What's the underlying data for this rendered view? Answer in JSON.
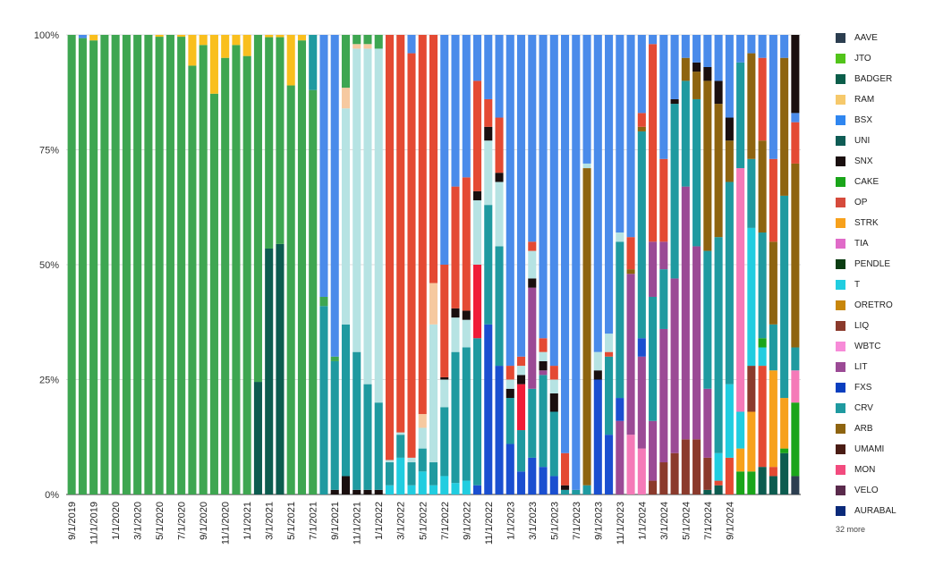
{
  "chart_data": {
    "type": "bar",
    "stacked": true,
    "normalized": true,
    "y_ticks": [
      "0%",
      "25%",
      "50%",
      "75%",
      "100%"
    ],
    "ylim": [
      0,
      100
    ],
    "grid": true,
    "legend_placement": "right",
    "legend_more": "32 more",
    "x_tick_labels": [
      "9/1/2019",
      "11/1/2019",
      "1/1/2020",
      "3/1/2020",
      "5/1/2020",
      "7/1/2020",
      "9/1/2020",
      "11/1/2020",
      "1/1/2021",
      "3/1/2021",
      "5/1/2021",
      "7/1/2021",
      "9/1/2021",
      "11/1/2021",
      "1/1/2022",
      "3/1/2022",
      "5/1/2022",
      "7/1/2022",
      "9/1/2022",
      "11/1/2022",
      "1/1/2023",
      "3/1/2023",
      "5/1/2023",
      "7/1/2023",
      "9/1/2023",
      "11/1/2023",
      "1/1/2024",
      "3/1/2024",
      "5/1/2024",
      "7/1/2024",
      "9/1/2024"
    ],
    "legend": [
      {
        "name": "AAVE",
        "color": "#2c3e50"
      },
      {
        "name": "JTO",
        "color": "#52c41a"
      },
      {
        "name": "BADGER",
        "color": "#0b5e4a"
      },
      {
        "name": "RAM",
        "color": "#f6c96b"
      },
      {
        "name": "BSX",
        "color": "#2f86f0"
      },
      {
        "name": "UNI",
        "color": "#0f5c55"
      },
      {
        "name": "SNX",
        "color": "#1a0f0f"
      },
      {
        "name": "CAKE",
        "color": "#1aa51a"
      },
      {
        "name": "OP",
        "color": "#d64b3c"
      },
      {
        "name": "STRK",
        "color": "#f7a11c"
      },
      {
        "name": "TIA",
        "color": "#e06bc8"
      },
      {
        "name": "PENDLE",
        "color": "#0b3d12"
      },
      {
        "name": "T",
        "color": "#21cde0"
      },
      {
        "name": "ORETRO",
        "color": "#c8860a"
      },
      {
        "name": "LIQ",
        "color": "#8b3a2c"
      },
      {
        "name": "WBTC",
        "color": "#f78bd8"
      },
      {
        "name": "LIT",
        "color": "#9b4a95"
      },
      {
        "name": "FXS",
        "color": "#0a3fbf"
      },
      {
        "name": "CRV",
        "color": "#1f9aa0"
      },
      {
        "name": "ARB",
        "color": "#8e6410"
      },
      {
        "name": "UMAMI",
        "color": "#4a1c14"
      },
      {
        "name": "MON",
        "color": "#f24b7e"
      },
      {
        "name": "VELO",
        "color": "#5a2a4c"
      },
      {
        "name": "AURABAL",
        "color": "#0a2a7a"
      }
    ],
    "segment_colors": {
      "g": "#3ea651",
      "y": "#f9bf1e",
      "dt": "#0c5c4f",
      "cr": "#1f9aa0",
      "lb": "#b6e3e3",
      "rd": "#e44a33",
      "bb": "#4a8bea",
      "db": "#1a4fd0",
      "pk": "#f57ab8",
      "pu": "#9b4a95",
      "br": "#8b3a2c",
      "ab": "#8e6410",
      "or": "#f7a11c",
      "cy": "#21cde0",
      "bk": "#1a0f0f",
      "gn": "#1aa51a",
      "ft": "#f6c9a0",
      "mr": "#f01d38",
      "ak": "#2c3e50"
    },
    "bars": [
      [
        [
          "g",
          100
        ]
      ],
      [
        [
          "g",
          99.3
        ],
        [
          "bb",
          0.7
        ]
      ],
      [
        [
          "g",
          98.8
        ],
        [
          "y",
          1.2
        ]
      ],
      [
        [
          "g",
          100
        ]
      ],
      [
        [
          "g",
          100
        ]
      ],
      [
        [
          "g",
          100
        ]
      ],
      [
        [
          "g",
          100
        ]
      ],
      [
        [
          "g",
          100
        ]
      ],
      [
        [
          "g",
          99.6
        ],
        [
          "y",
          0.4
        ]
      ],
      [
        [
          "g",
          100
        ]
      ],
      [
        [
          "g",
          99.6
        ],
        [
          "y",
          0.4
        ]
      ],
      [
        [
          "g",
          93.3
        ],
        [
          "y",
          6.7
        ]
      ],
      [
        [
          "g",
          97.8
        ],
        [
          "y",
          2.2
        ]
      ],
      [
        [
          "g",
          87.2
        ],
        [
          "y",
          12.8
        ]
      ],
      [
        [
          "g",
          95
        ],
        [
          "y",
          5
        ]
      ],
      [
        [
          "g",
          97.8
        ],
        [
          "y",
          2.2
        ]
      ],
      [
        [
          "g",
          95.4
        ],
        [
          "y",
          4.6
        ]
      ],
      [
        [
          "dt",
          24.5
        ],
        [
          "g",
          75.5
        ]
      ],
      [
        [
          "dt",
          53.5
        ],
        [
          "g",
          46
        ],
        [
          "y",
          0.5
        ]
      ],
      [
        [
          "dt",
          54.5
        ],
        [
          "g",
          45
        ],
        [
          "y",
          0.5
        ]
      ],
      [
        [
          "g",
          89
        ],
        [
          "y",
          11
        ]
      ],
      [
        [
          "g",
          98.8
        ],
        [
          "y",
          1.2
        ]
      ],
      [
        [
          "g",
          88
        ],
        [
          "cr",
          12
        ]
      ],
      [
        [
          "cr",
          41
        ],
        [
          "g",
          2
        ],
        [
          "bb",
          57
        ]
      ],
      [
        [
          "bk",
          1
        ],
        [
          "cr",
          28
        ],
        [
          "g",
          1
        ],
        [
          "bb",
          70
        ]
      ],
      [
        [
          "bk",
          4
        ],
        [
          "cr",
          33
        ],
        [
          "lb",
          47
        ],
        [
          "ft",
          4.5
        ],
        [
          "g",
          11.5
        ]
      ],
      [
        [
          "bk",
          1
        ],
        [
          "cr",
          30
        ],
        [
          "lb",
          66
        ],
        [
          "ft",
          1
        ],
        [
          "g",
          2
        ]
      ],
      [
        [
          "bk",
          1
        ],
        [
          "cr",
          23
        ],
        [
          "lb",
          73
        ],
        [
          "ft",
          1
        ],
        [
          "g",
          2
        ]
      ],
      [
        [
          "bk",
          1
        ],
        [
          "cr",
          19
        ],
        [
          "lb",
          77
        ],
        [
          "g",
          3
        ]
      ],
      [
        [
          "cy",
          2
        ],
        [
          "cr",
          5
        ],
        [
          "lb",
          0.5
        ],
        [
          "rd",
          92.5
        ]
      ],
      [
        [
          "cy",
          8
        ],
        [
          "cr",
          5
        ],
        [
          "lb",
          0.5
        ],
        [
          "rd",
          86.5
        ]
      ],
      [
        [
          "cy",
          2
        ],
        [
          "cr",
          5
        ],
        [
          "lb",
          1
        ],
        [
          "rd",
          88
        ],
        [
          "bb",
          4
        ]
      ],
      [
        [
          "cy",
          5
        ],
        [
          "cr",
          5
        ],
        [
          "lb",
          4.5
        ],
        [
          "ft",
          3
        ],
        [
          "rd",
          82.5
        ]
      ],
      [
        [
          "cy",
          2
        ],
        [
          "cr",
          5
        ],
        [
          "lb",
          30
        ],
        [
          "ft",
          9
        ],
        [
          "rd",
          54
        ]
      ],
      [
        [
          "cy",
          4
        ],
        [
          "cr",
          15
        ],
        [
          "lb",
          6
        ],
        [
          "bk",
          0.5
        ],
        [
          "rd",
          24.5
        ],
        [
          "bb",
          50
        ]
      ],
      [
        [
          "cy",
          2.5
        ],
        [
          "cr",
          28.5
        ],
        [
          "lb",
          7.5
        ],
        [
          "bk",
          2
        ],
        [
          "rd",
          26.5
        ],
        [
          "bb",
          33
        ]
      ],
      [
        [
          "cy",
          3
        ],
        [
          "cr",
          29
        ],
        [
          "lb",
          6
        ],
        [
          "bk",
          2
        ],
        [
          "rd",
          29
        ],
        [
          "bb",
          31
        ]
      ],
      [
        [
          "db",
          2
        ],
        [
          "cr",
          32
        ],
        [
          "mr",
          16
        ],
        [
          "lb",
          14
        ],
        [
          "bk",
          2
        ],
        [
          "rd",
          24
        ],
        [
          "bb",
          10
        ]
      ],
      [
        [
          "db",
          37
        ],
        [
          "cr",
          26
        ],
        [
          "lb",
          14
        ],
        [
          "bk",
          3
        ],
        [
          "rd",
          6
        ],
        [
          "bb",
          14
        ]
      ],
      [
        [
          "db",
          28
        ],
        [
          "cr",
          26
        ],
        [
          "lb",
          14
        ],
        [
          "bk",
          2
        ],
        [
          "rd",
          12
        ],
        [
          "bb",
          18
        ]
      ],
      [
        [
          "db",
          11
        ],
        [
          "cr",
          10
        ],
        [
          "bk",
          2
        ],
        [
          "lb",
          2
        ],
        [
          "rd",
          3
        ],
        [
          "bb",
          72
        ]
      ],
      [
        [
          "db",
          5
        ],
        [
          "cr",
          9
        ],
        [
          "mr",
          10
        ],
        [
          "bk",
          2
        ],
        [
          "lb",
          2
        ],
        [
          "rd",
          2
        ],
        [
          "bb",
          70
        ]
      ],
      [
        [
          "db",
          8
        ],
        [
          "cr",
          15
        ],
        [
          "pu",
          22
        ],
        [
          "bk",
          2
        ],
        [
          "lb",
          6
        ],
        [
          "rd",
          2
        ],
        [
          "bb",
          45
        ]
      ],
      [
        [
          "db",
          6
        ],
        [
          "cr",
          20
        ],
        [
          "pu",
          1
        ],
        [
          "bk",
          2
        ],
        [
          "lb",
          2
        ],
        [
          "rd",
          3
        ],
        [
          "bb",
          66
        ]
      ],
      [
        [
          "db",
          4
        ],
        [
          "cr",
          14
        ],
        [
          "bk",
          4
        ],
        [
          "lb",
          3
        ],
        [
          "rd",
          3
        ],
        [
          "bb",
          72
        ]
      ],
      [
        [
          "cr",
          1
        ],
        [
          "bk",
          1
        ],
        [
          "rd",
          7
        ],
        [
          "bb",
          91
        ]
      ],
      [
        [
          "cr",
          1
        ],
        [
          "bb",
          99
        ]
      ],
      [
        [
          "cr",
          2
        ],
        [
          "ab",
          69
        ],
        [
          "lb",
          1
        ],
        [
          "bb",
          28
        ]
      ],
      [
        [
          "db",
          25
        ],
        [
          "bk",
          2
        ],
        [
          "lb",
          4
        ],
        [
          "bb",
          69
        ]
      ],
      [
        [
          "db",
          13
        ],
        [
          "cr",
          17
        ],
        [
          "rd",
          1
        ],
        [
          "lb",
          4
        ],
        [
          "bb",
          65
        ]
      ],
      [
        [
          "pu",
          16
        ],
        [
          "db",
          5
        ],
        [
          "cr",
          34
        ],
        [
          "lb",
          2
        ],
        [
          "bb",
          43
        ]
      ],
      [
        [
          "pk",
          13
        ],
        [
          "pu",
          35
        ],
        [
          "ab",
          1
        ],
        [
          "rd",
          7
        ],
        [
          "bb",
          44
        ]
      ],
      [
        [
          "pk",
          10
        ],
        [
          "pu",
          20
        ],
        [
          "db",
          4
        ],
        [
          "cr",
          45
        ],
        [
          "ab",
          1
        ],
        [
          "rd",
          3
        ],
        [
          "bb",
          17
        ]
      ],
      [
        [
          "br",
          3
        ],
        [
          "pu",
          13
        ],
        [
          "cr",
          27
        ],
        [
          "pu",
          12
        ],
        [
          "rd",
          43
        ],
        [
          "bb",
          2
        ]
      ],
      [
        [
          "br",
          7
        ],
        [
          "pu",
          29
        ],
        [
          "cr",
          13
        ],
        [
          "pu",
          6
        ],
        [
          "rd",
          18
        ],
        [
          "bb",
          27
        ]
      ],
      [
        [
          "br",
          9
        ],
        [
          "pu",
          38
        ],
        [
          "cr",
          38
        ],
        [
          "bk",
          1
        ],
        [
          "bb",
          14
        ]
      ],
      [
        [
          "br",
          12
        ],
        [
          "pu",
          55
        ],
        [
          "cr",
          23
        ],
        [
          "ab",
          5
        ],
        [
          "bb",
          5
        ]
      ],
      [
        [
          "br",
          12
        ],
        [
          "pu",
          42
        ],
        [
          "cr",
          32
        ],
        [
          "ab",
          6
        ],
        [
          "bk",
          2
        ],
        [
          "bb",
          6
        ]
      ],
      [
        [
          "dt",
          1
        ],
        [
          "br",
          7
        ],
        [
          "pu",
          15
        ],
        [
          "cr",
          30
        ],
        [
          "ab",
          37
        ],
        [
          "bk",
          3
        ],
        [
          "bb",
          7
        ]
      ],
      [
        [
          "dt",
          2
        ],
        [
          "rd",
          1
        ],
        [
          "cy",
          6
        ],
        [
          "cr",
          47
        ],
        [
          "ab",
          29
        ],
        [
          "bk",
          5
        ],
        [
          "bb",
          10
        ]
      ],
      [
        [
          "rd",
          8
        ],
        [
          "cy",
          16
        ],
        [
          "cr",
          44
        ],
        [
          "ab",
          9
        ],
        [
          "bk",
          5
        ],
        [
          "bb",
          18
        ]
      ],
      [
        [
          "gn",
          5
        ],
        [
          "or",
          5
        ],
        [
          "cy",
          8
        ],
        [
          "pk",
          53
        ],
        [
          "cr",
          23
        ],
        [
          "bb",
          6
        ]
      ],
      [
        [
          "gn",
          5
        ],
        [
          "or",
          13
        ],
        [
          "br",
          10
        ],
        [
          "cy",
          30
        ],
        [
          "cr",
          15
        ],
        [
          "ab",
          23
        ],
        [
          "bb",
          4
        ]
      ],
      [
        [
          "dt",
          6
        ],
        [
          "rd",
          22
        ],
        [
          "cy",
          4
        ],
        [
          "gn",
          2
        ],
        [
          "cr",
          23
        ],
        [
          "ab",
          20
        ],
        [
          "rd",
          18
        ],
        [
          "bb",
          5
        ]
      ],
      [
        [
          "dt",
          4
        ],
        [
          "rd",
          2
        ],
        [
          "or",
          21
        ],
        [
          "cr",
          10
        ],
        [
          "ab",
          18
        ],
        [
          "rd",
          18
        ],
        [
          "bb",
          27
        ]
      ],
      [
        [
          "dt",
          9
        ],
        [
          "gn",
          1
        ],
        [
          "or",
          11
        ],
        [
          "cr",
          44
        ],
        [
          "ab",
          30
        ],
        [
          "bb",
          5
        ]
      ],
      [
        [
          "ak",
          4
        ],
        [
          "gn",
          16
        ],
        [
          "pk",
          7
        ],
        [
          "cr",
          5
        ],
        [
          "ab",
          40
        ],
        [
          "rd",
          9
        ],
        [
          "bb",
          2
        ],
        [
          "bk",
          17
        ]
      ]
    ]
  }
}
